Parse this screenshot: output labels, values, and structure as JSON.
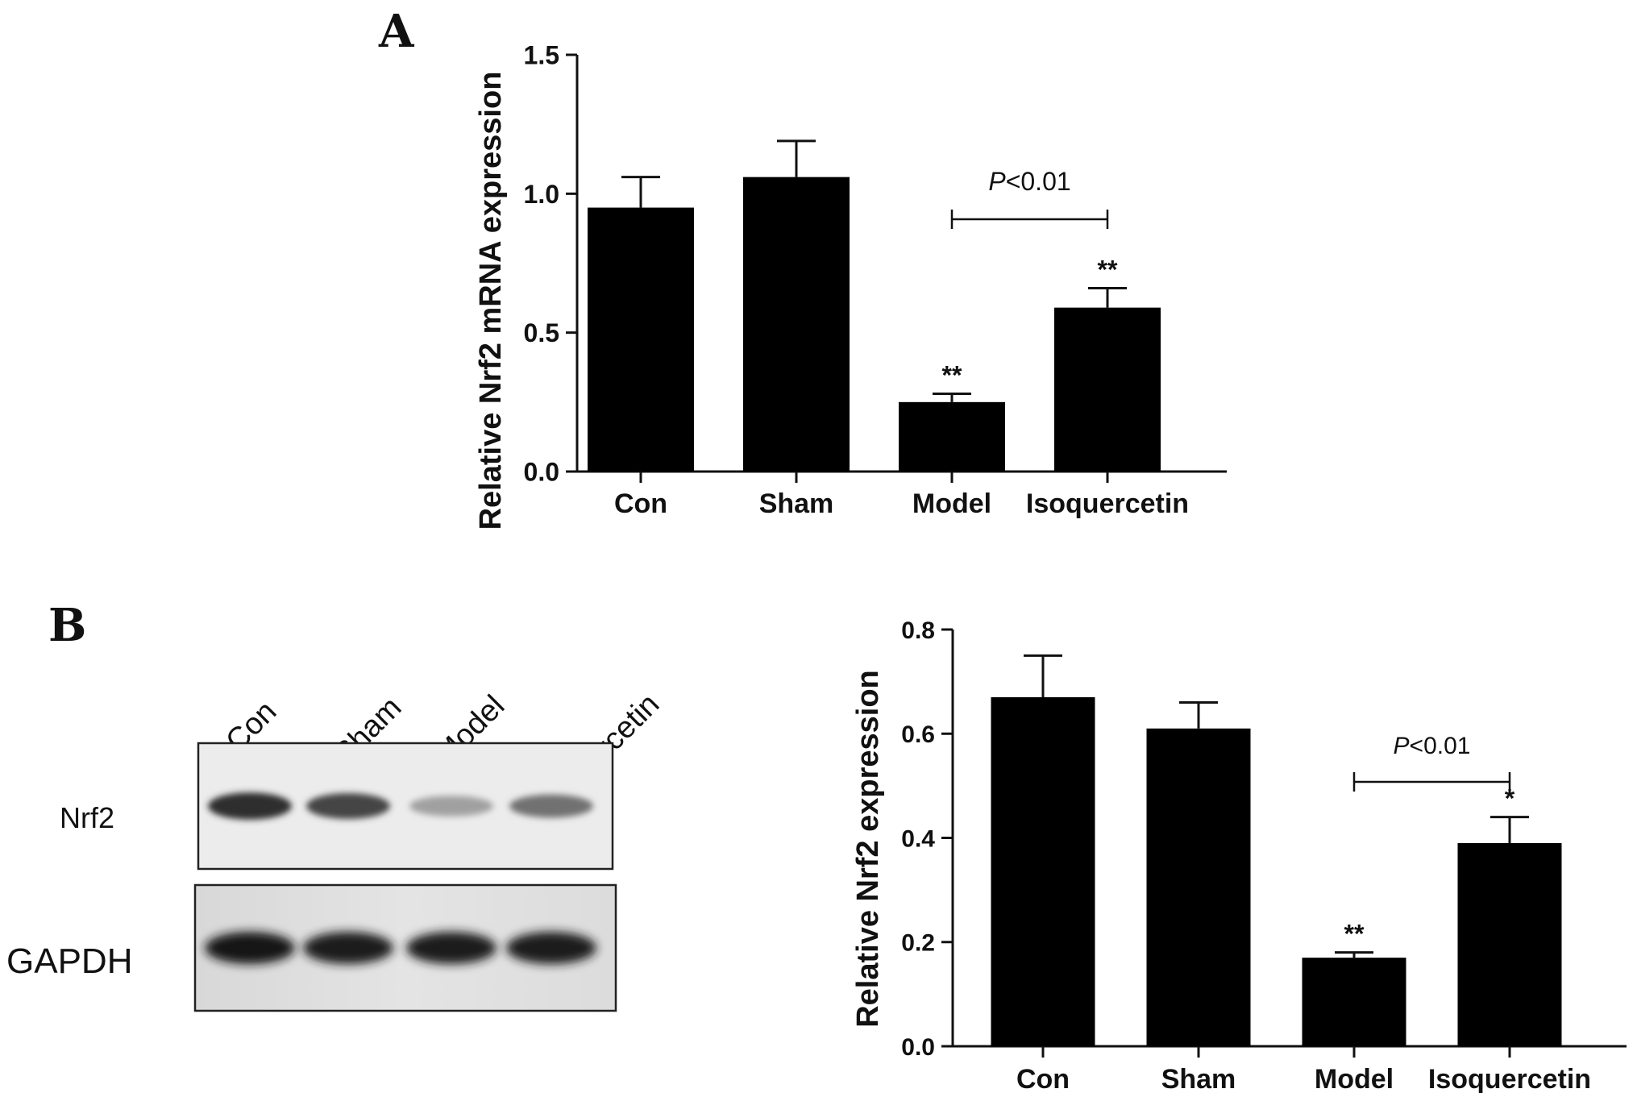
{
  "panels": {
    "a": "A",
    "b": "B"
  },
  "blot": {
    "lanes": [
      "Con",
      "Sham",
      "Model",
      "Isoquercetin"
    ],
    "rows": [
      {
        "label": "Nrf2",
        "band_intensity": [
          0.85,
          0.75,
          0.35,
          0.55
        ]
      },
      {
        "label": "GAPDH",
        "band_intensity": [
          0.95,
          0.92,
          0.92,
          0.92
        ]
      }
    ]
  },
  "chart_data": [
    {
      "type": "bar",
      "title": "",
      "xlabel": "",
      "ylabel": "Relative Nrf2 mRNA expression",
      "categories": [
        "Con",
        "Sham",
        "Model",
        "Isoquercetin"
      ],
      "values": [
        0.95,
        1.06,
        0.25,
        0.59
      ],
      "errors": [
        0.11,
        0.13,
        0.03,
        0.07
      ],
      "significance": [
        "",
        "",
        "**",
        "**"
      ],
      "ylim": [
        0,
        1.5
      ],
      "yticks": [
        "0.0",
        "0.5",
        "1.0",
        "1.5"
      ],
      "comparison": {
        "from": "Model",
        "to": "Isoquercetin",
        "label": "<0.01",
        "label_prefix": "P"
      },
      "bar_color": "#000000"
    },
    {
      "type": "bar",
      "title": "",
      "xlabel": "",
      "ylabel": "Relative Nrf2 expression",
      "categories": [
        "Con",
        "Sham",
        "Model",
        "Isoquercetin"
      ],
      "values": [
        0.67,
        0.61,
        0.17,
        0.39
      ],
      "errors": [
        0.08,
        0.05,
        0.01,
        0.05
      ],
      "significance": [
        "",
        "",
        "**",
        "*"
      ],
      "ylim": [
        0,
        0.8
      ],
      "yticks": [
        "0.0",
        "0.2",
        "0.4",
        "0.6",
        "0.8"
      ],
      "comparison": {
        "from": "Model",
        "to": "Isoquercetin",
        "label": "<0.01",
        "label_prefix": "P"
      },
      "bar_color": "#000000"
    }
  ]
}
